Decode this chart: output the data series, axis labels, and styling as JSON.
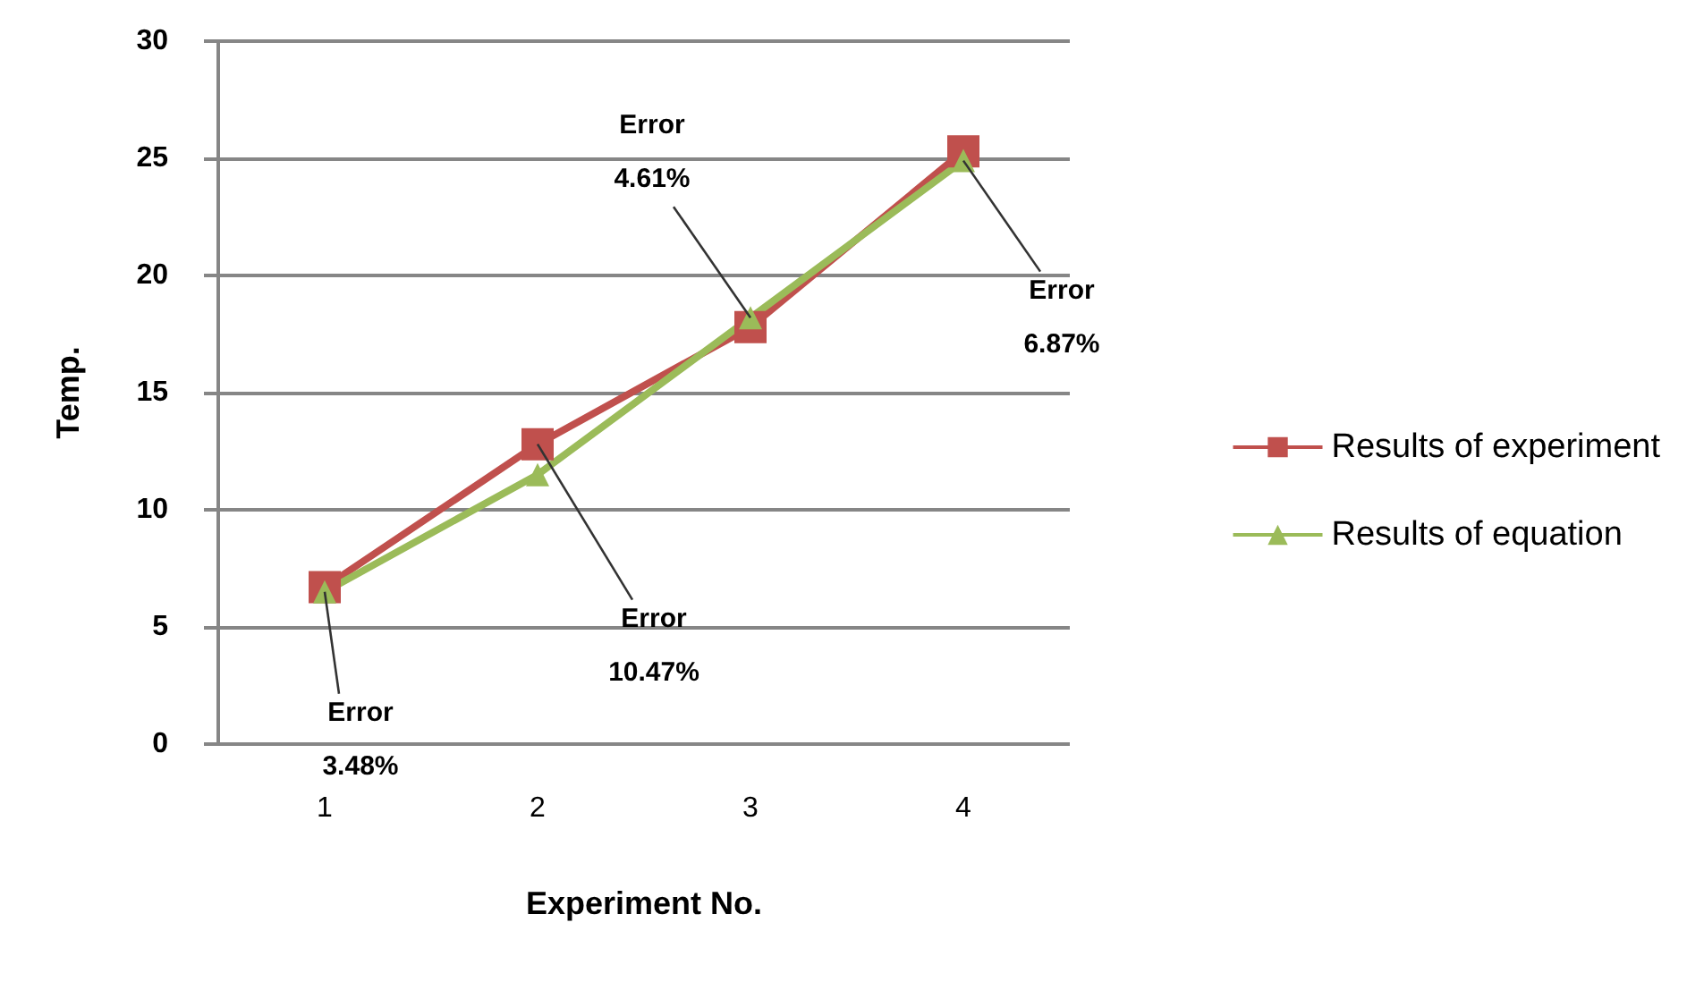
{
  "chart_data": {
    "type": "line",
    "xlabel": "Experiment No.",
    "ylabel": "Temp.",
    "categories": [
      "1",
      "2",
      "3",
      "4"
    ],
    "series": [
      {
        "name": "Results of experiment",
        "color": "#c0504d",
        "marker": "square",
        "values": [
          6.7,
          12.8,
          17.8,
          25.3
        ]
      },
      {
        "name": "Results of equation",
        "color": "#9bbb59",
        "marker": "triangle",
        "values": [
          6.5,
          11.5,
          18.2,
          24.9
        ]
      }
    ],
    "ylim": [
      0,
      30
    ],
    "yticks": [
      0,
      5,
      10,
      15,
      20,
      25,
      30
    ],
    "grid": "y",
    "legend": "right",
    "annotations": [
      {
        "text": "Error\n3.48%",
        "x": "1",
        "y": 6.5
      },
      {
        "text": "Error\n10.47%",
        "x": "2",
        "y": 12.8
      },
      {
        "text": "Error\n4.61%",
        "x": "3",
        "y": 18.2
      },
      {
        "text": "Error\n6.87%",
        "x": "4",
        "y": 24.9
      }
    ]
  }
}
